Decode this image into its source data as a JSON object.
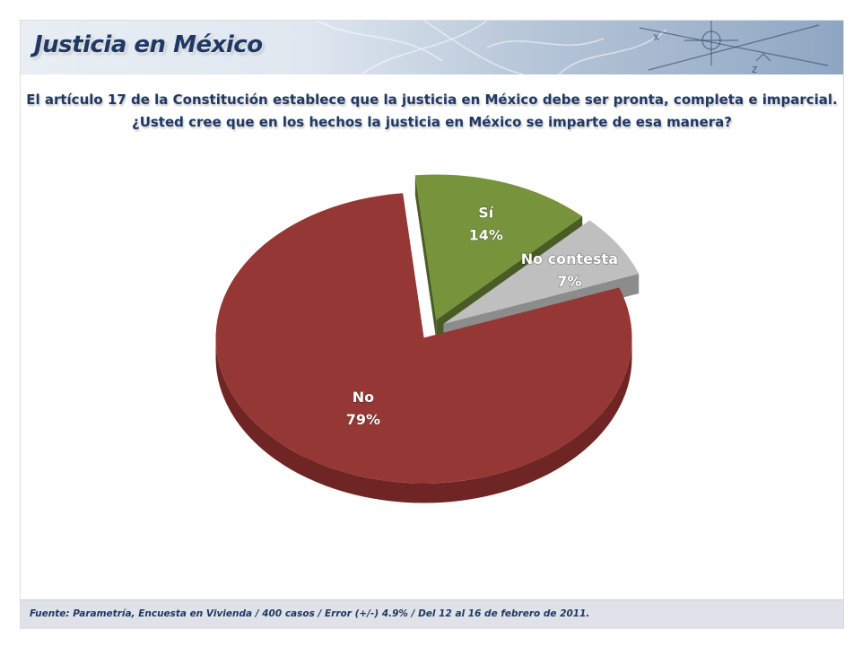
{
  "header": {
    "title": "Justicia en México"
  },
  "question": {
    "line1": "El artículo 17 de la Constitución establece que la justicia en México debe ser pronta, completa e imparcial.",
    "line2": "¿Usted cree que en los hechos la justicia en México se imparte de esa manera?"
  },
  "chart_data": {
    "type": "pie",
    "style": "3d-exploded",
    "title": "",
    "slices": [
      {
        "label": "No",
        "value": 79,
        "value_label": "79%",
        "color": "#953735",
        "side_color": "#6e2523"
      },
      {
        "label": "No contesta",
        "value": 7,
        "value_label": "7%",
        "color": "#bfbfbf",
        "side_color": "#8c8c8c"
      },
      {
        "label": "Sí",
        "value": 14,
        "value_label": "14%",
        "color": "#77933c",
        "side_color": "#4a5c25"
      }
    ],
    "legend": "none"
  },
  "footer": {
    "source": "Fuente: Parametría, Encuesta en Vivienda / 400 casos / Error (+/-) 4.9% / Del 12 al 16 de febrero de 2011."
  }
}
